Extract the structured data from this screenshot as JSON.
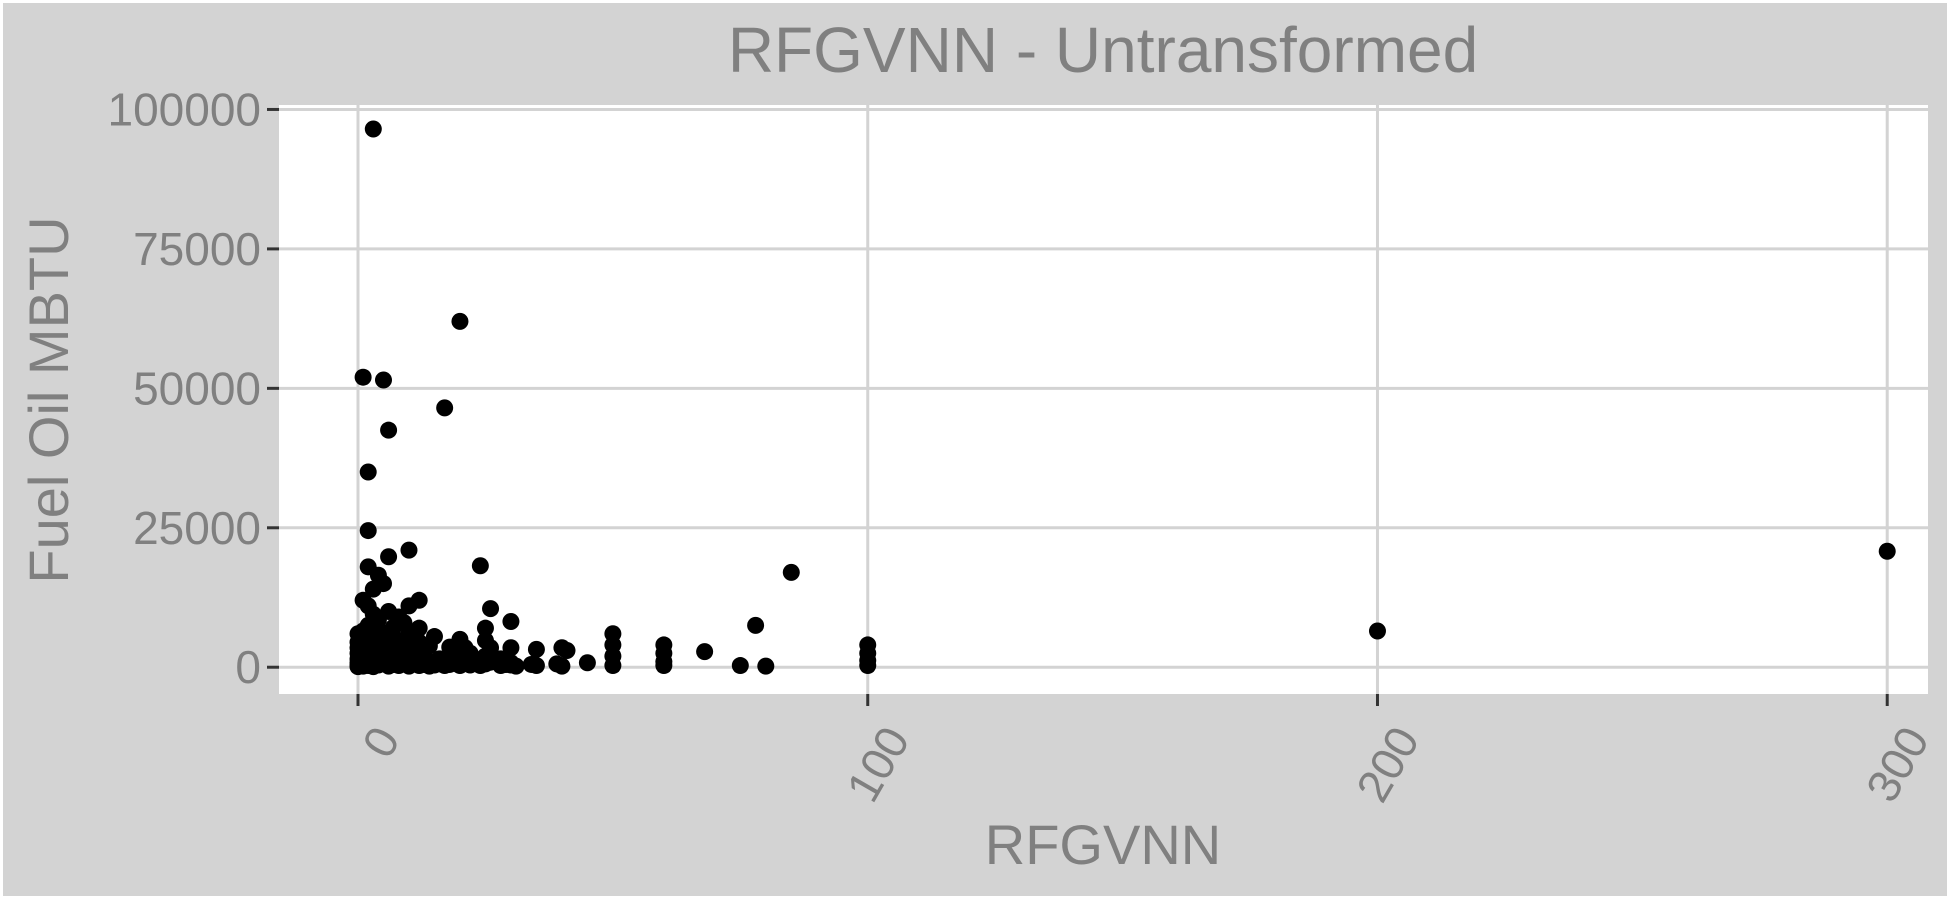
{
  "chart_data": {
    "type": "scatter",
    "title": "RFGVNN - Untransformed",
    "xlabel": "RFGVNN",
    "ylabel": "Fuel Oil MBTU",
    "xlim": [
      -15.5,
      308
    ],
    "ylim": [
      -4800,
      100800
    ],
    "x_ticks": [
      0,
      100,
      200,
      300
    ],
    "y_ticks": [
      0,
      25000,
      50000,
      75000,
      100000
    ],
    "x_tick_labels": [
      "0",
      "100",
      "200",
      "300"
    ],
    "y_tick_labels": [
      "0",
      "25000",
      "50000",
      "75000",
      "100000"
    ],
    "grid": true,
    "legend": "none",
    "colors": {
      "panel_background": "#ffffff",
      "plot_background": "#d3d3d3",
      "grid": "#d3d3d3",
      "point": "#000000",
      "text": "#808080",
      "tick": "#333333"
    },
    "points": [
      [
        3,
        96500
      ],
      [
        20,
        62000
      ],
      [
        1,
        52000
      ],
      [
        5,
        51500
      ],
      [
        17,
        46500
      ],
      [
        6,
        42500
      ],
      [
        2,
        35000
      ],
      [
        2,
        24500
      ],
      [
        10,
        21000
      ],
      [
        6,
        19800
      ],
      [
        24,
        18200
      ],
      [
        2,
        18000
      ],
      [
        4,
        16500
      ],
      [
        5,
        15000
      ],
      [
        3,
        14000
      ],
      [
        1,
        12000
      ],
      [
        12,
        12000
      ],
      [
        2,
        11000
      ],
      [
        10,
        11000
      ],
      [
        26,
        10500
      ],
      [
        6,
        10000
      ],
      [
        3,
        9500
      ],
      [
        8,
        9000
      ],
      [
        4,
        8500
      ],
      [
        9,
        8000
      ],
      [
        30,
        8200
      ],
      [
        2,
        7500
      ],
      [
        7,
        7200
      ],
      [
        12,
        7000
      ],
      [
        25,
        7000
      ],
      [
        3,
        6800
      ],
      [
        1,
        6500
      ],
      [
        5,
        6200
      ],
      [
        10,
        6000
      ],
      [
        15,
        5500
      ],
      [
        6,
        5000
      ],
      [
        20,
        5000
      ],
      [
        8,
        4800
      ],
      [
        12,
        4500
      ],
      [
        25,
        4800
      ],
      [
        2,
        4500
      ],
      [
        4,
        4000
      ],
      [
        7,
        4000
      ],
      [
        10,
        3800
      ],
      [
        14,
        3800
      ],
      [
        18,
        3600
      ],
      [
        21,
        3500
      ],
      [
        26,
        3500
      ],
      [
        30,
        3500
      ],
      [
        35,
        3200
      ],
      [
        40,
        3500
      ],
      [
        41,
        3000
      ],
      [
        50,
        6000
      ],
      [
        50,
        4000
      ],
      [
        50,
        2000
      ],
      [
        50,
        300
      ],
      [
        60,
        4000
      ],
      [
        60,
        2500
      ],
      [
        60,
        1000
      ],
      [
        60,
        300
      ],
      [
        68,
        2800
      ],
      [
        78,
        7500
      ],
      [
        85,
        17000
      ],
      [
        100,
        4000
      ],
      [
        100,
        2500
      ],
      [
        100,
        1200
      ],
      [
        100,
        300
      ],
      [
        80,
        200
      ],
      [
        75,
        300
      ],
      [
        45,
        800
      ],
      [
        40,
        200
      ],
      [
        35,
        300
      ],
      [
        30,
        400
      ],
      [
        28,
        1500
      ],
      [
        25,
        2000
      ],
      [
        22,
        2500
      ],
      [
        20,
        1800
      ],
      [
        18,
        2200
      ],
      [
        16,
        1500
      ],
      [
        14,
        1000
      ],
      [
        12,
        1800
      ],
      [
        11,
        2500
      ],
      [
        9,
        3000
      ],
      [
        8,
        1500
      ],
      [
        7,
        2000
      ],
      [
        6,
        3000
      ],
      [
        5,
        2500
      ],
      [
        4,
        1800
      ],
      [
        3,
        3000
      ],
      [
        2,
        2500
      ],
      [
        1,
        3000
      ],
      [
        0,
        6000
      ],
      [
        0,
        4500
      ],
      [
        0,
        3500
      ],
      [
        0,
        2500
      ],
      [
        0,
        1500
      ],
      [
        0,
        800
      ],
      [
        0,
        300
      ],
      [
        0,
        100
      ],
      [
        1,
        200
      ],
      [
        2,
        300
      ],
      [
        3,
        100
      ],
      [
        4,
        400
      ],
      [
        5,
        600
      ],
      [
        6,
        200
      ],
      [
        7,
        500
      ],
      [
        8,
        300
      ],
      [
        9,
        800
      ],
      [
        10,
        200
      ],
      [
        11,
        700
      ],
      [
        12,
        300
      ],
      [
        13,
        500
      ],
      [
        14,
        200
      ],
      [
        15,
        400
      ],
      [
        16,
        600
      ],
      [
        17,
        300
      ],
      [
        18,
        500
      ],
      [
        19,
        800
      ],
      [
        20,
        300
      ],
      [
        21,
        900
      ],
      [
        22,
        400
      ],
      [
        23,
        700
      ],
      [
        24,
        300
      ],
      [
        25,
        600
      ],
      [
        26,
        900
      ],
      [
        27,
        1200
      ],
      [
        28,
        300
      ],
      [
        29,
        500
      ],
      [
        30,
        800
      ],
      [
        31,
        200
      ],
      [
        34,
        500
      ],
      [
        39,
        600
      ],
      [
        200,
        6500
      ],
      [
        300,
        20800
      ]
    ]
  }
}
